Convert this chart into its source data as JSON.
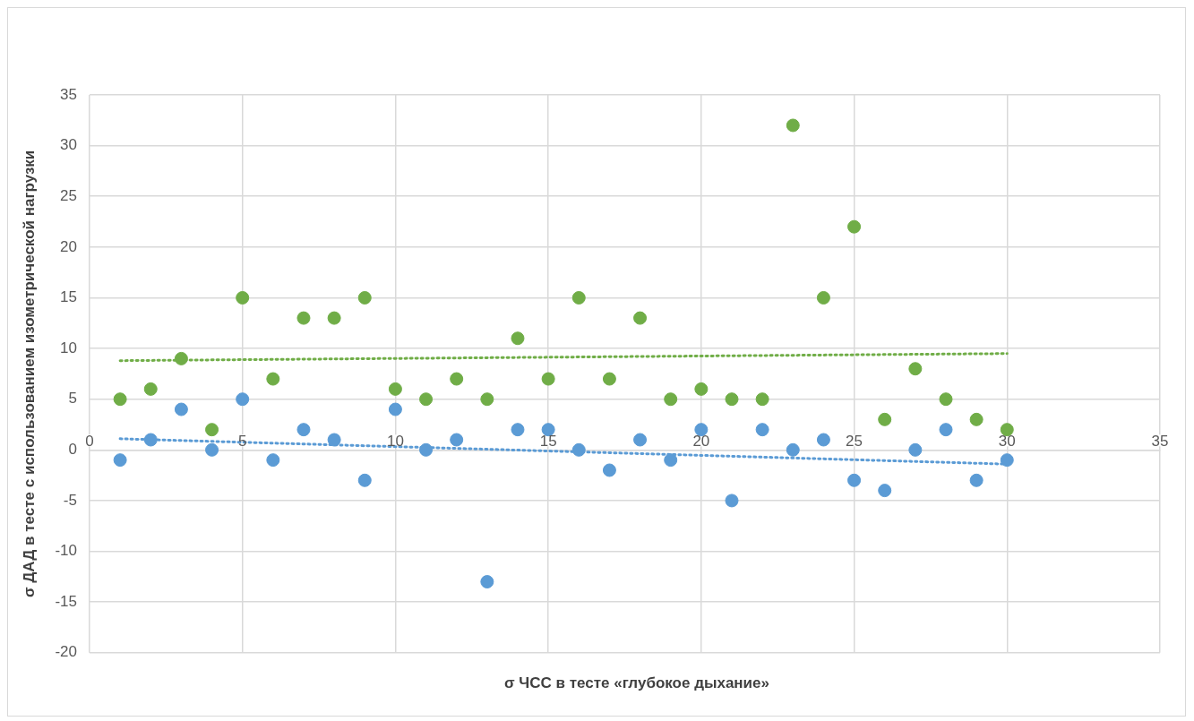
{
  "chart_data": {
    "type": "scatter",
    "xlabel": "σ ЧСС в тесте «глубокое дыхание»",
    "ylabel": "σ ДАД в тесте с использованием изометрической нагрузки",
    "xlim": [
      0,
      35
    ],
    "xticks": [
      0,
      5,
      10,
      15,
      20,
      25,
      30,
      35
    ],
    "ylim": [
      -20,
      35
    ],
    "yticks": [
      -20,
      -15,
      -10,
      -5,
      0,
      5,
      10,
      15,
      20,
      25,
      30,
      35
    ],
    "grid": true,
    "legend": false,
    "series": [
      {
        "type": "scatter",
        "color": "#70ad47",
        "marker": "circle",
        "x": [
          1,
          2,
          3,
          4,
          5,
          6,
          7,
          8,
          9,
          10,
          11,
          12,
          13,
          14,
          15,
          16,
          17,
          18,
          19,
          20,
          21,
          22,
          23,
          24,
          25,
          26,
          27,
          28,
          29,
          30
        ],
        "values": [
          5,
          6,
          9,
          2,
          15,
          7,
          13,
          13,
          15,
          6,
          5,
          7,
          5,
          11,
          7,
          15,
          7,
          13,
          5,
          6,
          5,
          5,
          32,
          15,
          22,
          3,
          8,
          5,
          3,
          2
        ]
      },
      {
        "type": "scatter",
        "color": "#5b9bd5",
        "marker": "circle",
        "x": [
          1,
          2,
          3,
          4,
          5,
          6,
          7,
          8,
          9,
          10,
          11,
          12,
          13,
          14,
          15,
          16,
          17,
          18,
          19,
          20,
          21,
          22,
          23,
          24,
          25,
          26,
          27,
          28,
          29,
          30
        ],
        "values": [
          -1,
          1,
          4,
          0,
          5,
          -1,
          2,
          1,
          -3,
          4,
          0,
          1,
          -13,
          2,
          2,
          0,
          -2,
          1,
          -1,
          2,
          -5,
          2,
          0,
          1,
          -3,
          -4,
          0,
          2,
          -3,
          -1
        ]
      },
      {
        "type": "line",
        "color": "#70ad47",
        "marker": "none",
        "line_style": "dotted",
        "x": [
          1,
          30
        ],
        "values": [
          8.8,
          9.5
        ]
      },
      {
        "type": "line",
        "color": "#5b9bd5",
        "marker": "none",
        "line_style": "dotted",
        "x": [
          1,
          30
        ],
        "values": [
          1.1,
          -1.4
        ]
      }
    ]
  }
}
